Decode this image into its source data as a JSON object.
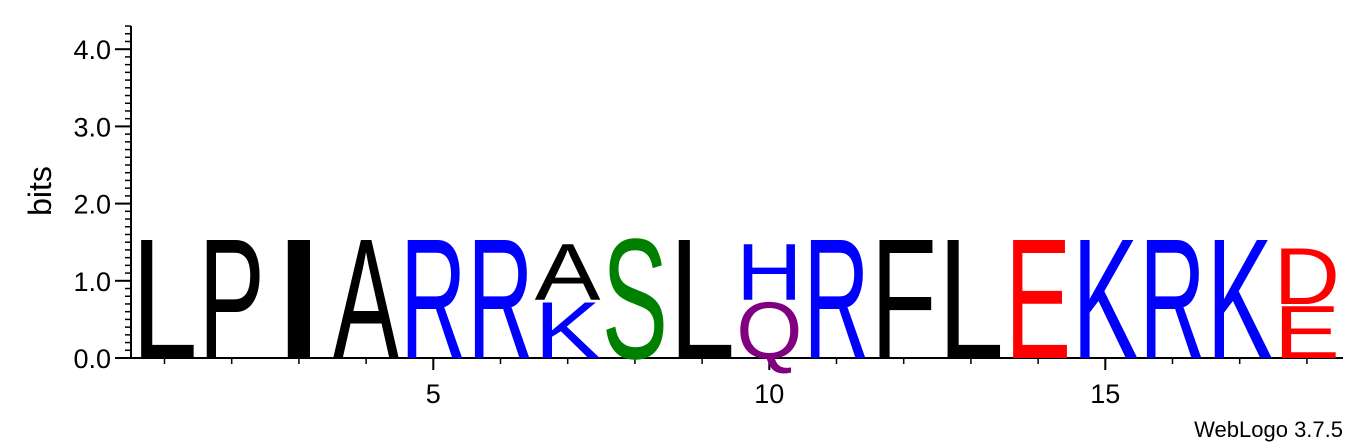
{
  "chart_data": {
    "type": "sequence-logo",
    "ylabel": "bits",
    "ylim": [
      0,
      4.3
    ],
    "y_ticks": [
      {
        "value": 0,
        "label": "0.0"
      },
      {
        "value": 1,
        "label": "1.0"
      },
      {
        "value": 2,
        "label": "2.0"
      },
      {
        "value": 3,
        "label": "3.0"
      },
      {
        "value": 4,
        "label": "4.0"
      }
    ],
    "x_ticks": [
      {
        "value": 5,
        "label": "5"
      },
      {
        "value": 10,
        "label": "10"
      },
      {
        "value": 15,
        "label": "15"
      }
    ],
    "x_range": [
      0.5,
      18.55
    ],
    "positions": [
      {
        "pos": 1,
        "letters": [
          {
            "char": "L",
            "bits": 1.6,
            "color": "#000000"
          }
        ]
      },
      {
        "pos": 2,
        "letters": [
          {
            "char": "P",
            "bits": 1.6,
            "color": "#000000"
          }
        ]
      },
      {
        "pos": 3,
        "letters": [
          {
            "char": "I",
            "bits": 1.6,
            "color": "#000000"
          }
        ]
      },
      {
        "pos": 4,
        "letters": [
          {
            "char": "A",
            "bits": 1.6,
            "color": "#000000"
          }
        ]
      },
      {
        "pos": 5,
        "letters": [
          {
            "char": "R",
            "bits": 1.6,
            "color": "#0000ff"
          }
        ]
      },
      {
        "pos": 6,
        "letters": [
          {
            "char": "R",
            "bits": 1.6,
            "color": "#0000ff"
          }
        ]
      },
      {
        "pos": 7,
        "letters": [
          {
            "char": "K",
            "bits": 0.75,
            "color": "#0000ff"
          },
          {
            "char": "A",
            "bits": 0.75,
            "color": "#000000"
          }
        ]
      },
      {
        "pos": 8,
        "letters": [
          {
            "char": "S",
            "bits": 1.6,
            "color": "#008000"
          }
        ]
      },
      {
        "pos": 9,
        "letters": [
          {
            "char": "L",
            "bits": 1.6,
            "color": "#000000"
          }
        ]
      },
      {
        "pos": 10,
        "letters": [
          {
            "char": "Q",
            "bits": 0.75,
            "color": "#800080"
          },
          {
            "char": "H",
            "bits": 0.75,
            "color": "#0000ff"
          }
        ]
      },
      {
        "pos": 11,
        "letters": [
          {
            "char": "R",
            "bits": 1.6,
            "color": "#0000ff"
          }
        ]
      },
      {
        "pos": 12,
        "letters": [
          {
            "char": "F",
            "bits": 1.6,
            "color": "#000000"
          }
        ]
      },
      {
        "pos": 13,
        "letters": [
          {
            "char": "L",
            "bits": 1.6,
            "color": "#000000"
          }
        ]
      },
      {
        "pos": 14,
        "letters": [
          {
            "char": "E",
            "bits": 1.6,
            "color": "#ff0000"
          }
        ]
      },
      {
        "pos": 15,
        "letters": [
          {
            "char": "K",
            "bits": 1.6,
            "color": "#0000ff"
          }
        ]
      },
      {
        "pos": 16,
        "letters": [
          {
            "char": "R",
            "bits": 1.6,
            "color": "#0000ff"
          }
        ]
      },
      {
        "pos": 17,
        "letters": [
          {
            "char": "K",
            "bits": 1.6,
            "color": "#0000ff"
          }
        ]
      },
      {
        "pos": 18,
        "letters": [
          {
            "char": "E",
            "bits": 0.7,
            "color": "#ff0000"
          },
          {
            "char": "D",
            "bits": 0.75,
            "color": "#ff0000"
          }
        ]
      }
    ]
  },
  "footer": {
    "credit": "WebLogo 3.7.5"
  }
}
